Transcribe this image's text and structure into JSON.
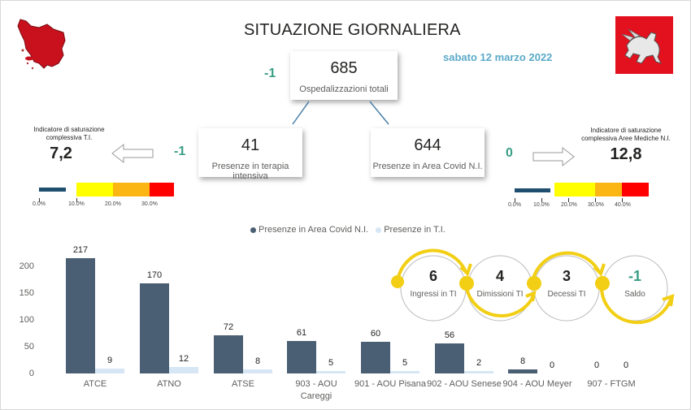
{
  "header": {
    "title": "SITUAZIONE GIORNALIERA",
    "date": "sabato 12 marzo 2022"
  },
  "logos": {
    "left": "tuscany-map-logo",
    "right": "regione-toscana-pegasus-logo",
    "brand_red": "#e3101e"
  },
  "totals": {
    "value": "685",
    "label": "Ospedalizzazioni totali",
    "delta": "-1"
  },
  "ti": {
    "value": "41",
    "label": "Presenze in terapia intensiva",
    "delta": "-1"
  },
  "covid_area": {
    "value": "644",
    "label": "Presenze in Area Covid N.I.",
    "delta": "0"
  },
  "saturation_ti": {
    "title_line1": "Indicatore di saturazione",
    "title_line2": "complessiva T.I.",
    "value": "7,2",
    "scale_labels": [
      "0.0%",
      "10.0%",
      "20.0%",
      "30.0%"
    ]
  },
  "saturation_nmed": {
    "title_line1": "Indicatore di saturazione",
    "title_line2": "complessiva Aree Mediche N.I.",
    "value": "12,8",
    "scale_labels": [
      "0.0%",
      "10.0%",
      "20.0%",
      "30.0%",
      "40.0%"
    ]
  },
  "flow": {
    "items": [
      {
        "value": "6",
        "label": "Ingressi in TI"
      },
      {
        "value": "4",
        "label": "Dimissioni TI"
      },
      {
        "value": "3",
        "label": "Decessi TI"
      },
      {
        "value": "-1",
        "label": "Saldo"
      }
    ],
    "accent": "#f2cf14"
  },
  "colors": {
    "dark_bar": "#4a5f73",
    "light_bar": "#d6e6f4",
    "delta_green": "#3a9e86",
    "date_blue": "#5aaac8"
  },
  "chart_data": {
    "type": "bar",
    "title": "",
    "xlabel": "",
    "ylabel": "",
    "ylim": [
      0,
      230
    ],
    "yticks": [
      0,
      50,
      100,
      150,
      200
    ],
    "legend_position": "top",
    "grid": false,
    "categories": [
      "ATCE",
      "ATNO",
      "ATSE",
      "903 - AOU Careggi",
      "901 - AOU Pisana",
      "902 - AOU Senese",
      "904 - AOU Meyer",
      "907 - FTGM"
    ],
    "series": [
      {
        "name": "Presenze in Area Covid N.I.",
        "color": "#4a5f73",
        "values": [
          217,
          170,
          72,
          61,
          60,
          56,
          8,
          0
        ]
      },
      {
        "name": "Presenze in T.I.",
        "color": "#d6e6f4",
        "values": [
          9,
          12,
          8,
          5,
          5,
          2,
          0,
          0
        ]
      }
    ]
  }
}
